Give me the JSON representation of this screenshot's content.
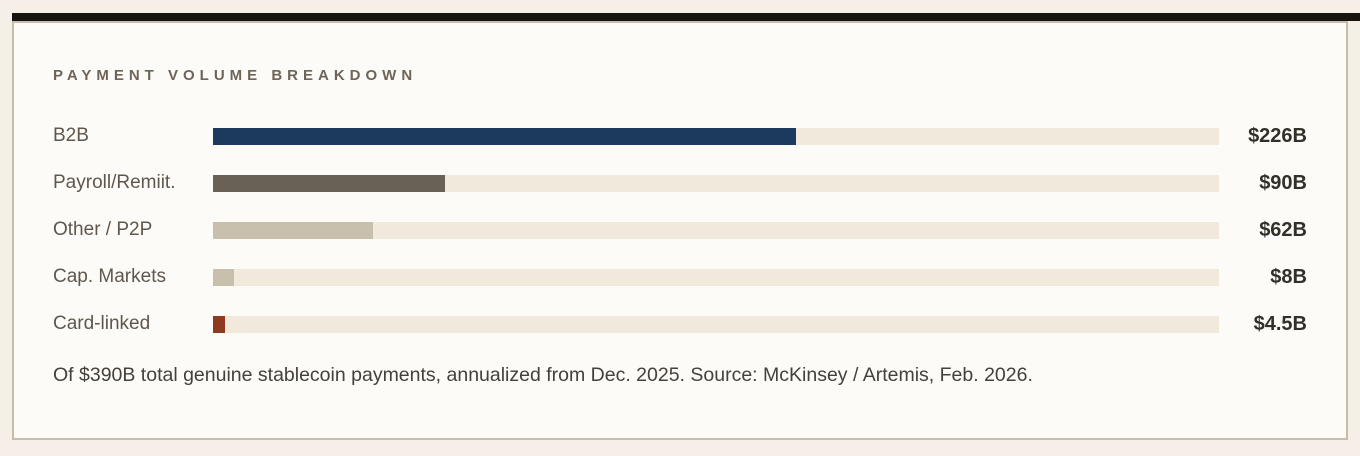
{
  "chart_data": {
    "type": "bar",
    "orientation": "horizontal",
    "title": "PAYMENT VOLUME BREAKDOWN",
    "total": 390,
    "categories": [
      "B2B",
      "Payroll/Remiit.",
      "Other / P2P",
      "Cap. Markets",
      "Card-linked"
    ],
    "values": [
      226,
      90,
      62,
      8,
      4.5
    ],
    "value_labels": [
      "$226B",
      "$90B",
      "$62B",
      "$8B",
      "$4.5B"
    ],
    "bar_colors": [
      "#1c3a5e",
      "#6a6156",
      "#c8bfad",
      "#c8bfad",
      "#8d3a1e"
    ],
    "track_color": "#f0e9dc",
    "xlim": [
      0,
      390
    ],
    "grid": false,
    "legend": false,
    "note": "Of $390B total genuine stablecoin payments, annualized from Dec. 2025. Source: McKinsey / Artemis, Feb. 2026."
  },
  "page": {
    "accent_bar_color": "#17140f",
    "card_background": "#fdfbf7",
    "card_border_color": "#c7bdac",
    "page_background": "#f6efe7"
  }
}
